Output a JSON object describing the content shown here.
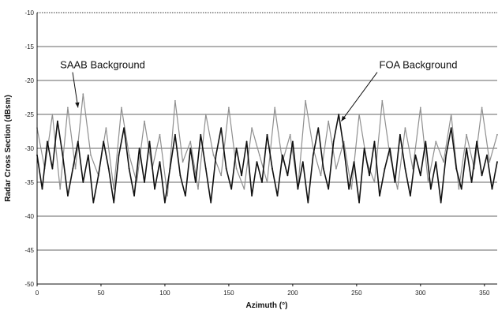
{
  "chart_data": {
    "type": "line",
    "title": "",
    "xlabel": "Azimuth (°)",
    "ylabel": "Radar Cross Section (dBsm)",
    "xlim": [
      0,
      360
    ],
    "ylim": [
      -50,
      -10
    ],
    "x_ticks": [
      0,
      50,
      100,
      150,
      200,
      250,
      300,
      350
    ],
    "y_ticks": [
      -10,
      -15,
      -20,
      -25,
      -30,
      -35,
      -40,
      -45,
      -50
    ],
    "grid": {
      "horizontal": true,
      "vertical": false
    },
    "annotations": [
      {
        "text": "SAAB Background",
        "points_to": "SAAB Background",
        "at": [
          32,
          -24
        ]
      },
      {
        "text": "FOA Background",
        "points_to": "FOA Background",
        "at": [
          238,
          -26
        ]
      }
    ],
    "series": [
      {
        "name": "SAAB Background",
        "color": "#8f8f8f",
        "x": [
          0,
          6,
          12,
          18,
          24,
          30,
          36,
          42,
          48,
          54,
          60,
          66,
          72,
          78,
          84,
          90,
          96,
          102,
          108,
          114,
          120,
          126,
          132,
          138,
          144,
          150,
          156,
          162,
          168,
          174,
          180,
          186,
          192,
          198,
          204,
          210,
          216,
          222,
          228,
          234,
          240,
          246,
          252,
          258,
          264,
          270,
          276,
          282,
          288,
          294,
          300,
          306,
          312,
          318,
          324,
          330,
          336,
          342,
          348,
          354,
          360
        ],
        "y": [
          -27,
          -33,
          -25,
          -36,
          -24,
          -33,
          -22,
          -31,
          -34,
          -27,
          -36,
          -24,
          -31,
          -35,
          -26,
          -33,
          -28,
          -37,
          -23,
          -32,
          -29,
          -36,
          -25,
          -31,
          -34,
          -24,
          -33,
          -36,
          -27,
          -31,
          -35,
          -24,
          -32,
          -28,
          -36,
          -23,
          -30,
          -34,
          -26,
          -33,
          -29,
          -36,
          -25,
          -32,
          -35,
          -23,
          -31,
          -36,
          -27,
          -33,
          -24,
          -35,
          -29,
          -32,
          -25,
          -36,
          -28,
          -33,
          -24,
          -32,
          -28
        ]
      },
      {
        "name": "FOA Background",
        "color": "#111111",
        "x": [
          0,
          4,
          8,
          12,
          16,
          20,
          24,
          28,
          32,
          36,
          40,
          44,
          48,
          52,
          56,
          60,
          64,
          68,
          72,
          76,
          80,
          84,
          88,
          92,
          96,
          100,
          104,
          108,
          112,
          116,
          120,
          124,
          128,
          132,
          136,
          140,
          144,
          148,
          152,
          156,
          160,
          164,
          168,
          172,
          176,
          180,
          184,
          188,
          192,
          196,
          200,
          204,
          208,
          212,
          216,
          220,
          224,
          228,
          232,
          236,
          240,
          244,
          248,
          252,
          256,
          260,
          264,
          268,
          272,
          276,
          280,
          284,
          288,
          292,
          296,
          300,
          304,
          308,
          312,
          316,
          320,
          324,
          328,
          332,
          336,
          340,
          344,
          348,
          352,
          356,
          360
        ],
        "y": [
          -31,
          -36,
          -29,
          -33,
          -26,
          -31,
          -37,
          -33,
          -29,
          -35,
          -31,
          -38,
          -34,
          -29,
          -33,
          -38,
          -31,
          -27,
          -33,
          -37,
          -30,
          -35,
          -29,
          -36,
          -32,
          -38,
          -33,
          -28,
          -34,
          -37,
          -30,
          -35,
          -28,
          -33,
          -38,
          -31,
          -27,
          -33,
          -36,
          -30,
          -34,
          -29,
          -37,
          -32,
          -35,
          -28,
          -33,
          -37,
          -31,
          -34,
          -29,
          -36,
          -32,
          -38,
          -31,
          -27,
          -33,
          -36,
          -29,
          -25,
          -30,
          -36,
          -32,
          -38,
          -30,
          -34,
          -29,
          -37,
          -33,
          -30,
          -35,
          -28,
          -33,
          -37,
          -31,
          -34,
          -29,
          -36,
          -32,
          -38,
          -31,
          -27,
          -33,
          -36,
          -30,
          -35,
          -29,
          -34,
          -31,
          -36,
          -32
        ]
      }
    ]
  }
}
